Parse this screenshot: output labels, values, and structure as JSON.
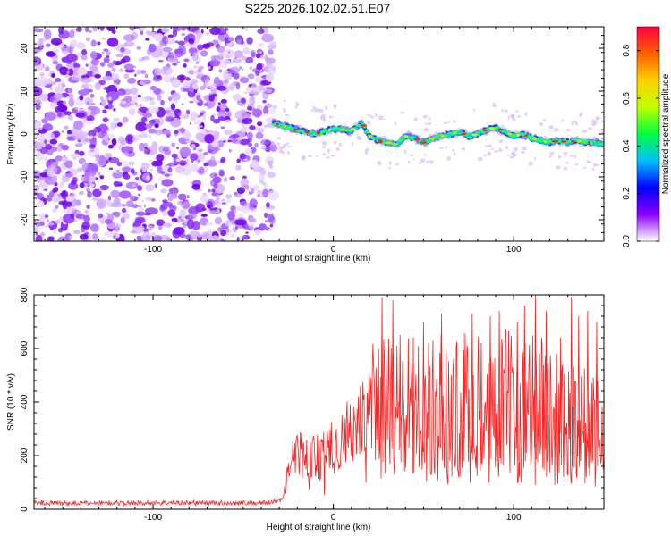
{
  "title": "S225.2026.102.02.51.E07",
  "chart_data": [
    {
      "type": "heatmap",
      "xlabel": "Height of straight line (km)",
      "ylabel": "Frequency (Hz)",
      "xlim": [
        -166,
        150
      ],
      "ylim": [
        -25,
        25
      ],
      "xticks": [
        -100,
        0,
        100
      ],
      "yticks": [
        -20,
        -10,
        0,
        10,
        20
      ],
      "xtick_labels": [
        "-100",
        "0",
        "100"
      ],
      "ytick_labels": [
        "-20",
        "-10",
        "0",
        "10",
        "20"
      ],
      "noise_region_x": [
        -166,
        -33
      ],
      "signal_track": {
        "x": [
          -33,
          -20,
          -10,
          0,
          10,
          16,
          20,
          25,
          30,
          35,
          40,
          45,
          50,
          55,
          60,
          65,
          70,
          75,
          80,
          85,
          90,
          95,
          100,
          105,
          110,
          115,
          120,
          125,
          130,
          135,
          140,
          145,
          150
        ],
        "freq_hz": [
          2.5,
          1.0,
          0.0,
          1.2,
          0.8,
          2.5,
          -0.5,
          -1.5,
          -2.0,
          -2.5,
          -0.5,
          -1.0,
          -2.0,
          -1.0,
          -0.5,
          0.0,
          0.5,
          -0.5,
          0.0,
          1.0,
          1.5,
          0.5,
          -0.5,
          0.0,
          -1.0,
          -1.5,
          -2.0,
          -1.5,
          -2.0,
          -1.5,
          -2.0,
          -2.0,
          -2.5
        ]
      },
      "colorbar": {
        "label": "Normalized spectral amplitude",
        "range": [
          0.0,
          0.9
        ],
        "ticks": [
          0.0,
          0.2,
          0.4,
          0.6,
          0.8
        ],
        "tick_labels": [
          "0.0",
          "0.2",
          "0.4",
          "0.6",
          "0.8"
        ],
        "colors": [
          "#ffffff",
          "#8a00ff",
          "#0000ff",
          "#00c0ff",
          "#00ff40",
          "#c0ff00",
          "#ffd000",
          "#ff6000",
          "#ff0040"
        ]
      }
    },
    {
      "type": "line",
      "xlabel": "Height of straight line (km)",
      "ylabel": "SNR (10 * v/v)",
      "xlim": [
        -166,
        150
      ],
      "ylim": [
        0,
        800
      ],
      "xticks": [
        -100,
        0,
        100
      ],
      "yticks": [
        0,
        200,
        400,
        600,
        800
      ],
      "xtick_labels": [
        "-100",
        "0",
        "100"
      ],
      "ytick_labels": [
        "0",
        "200",
        "400",
        "600",
        "800"
      ],
      "series": [
        {
          "name": "SNR",
          "color": "#ff2020",
          "x": [
            -166,
            -150,
            -130,
            -110,
            -90,
            -70,
            -50,
            -35,
            -28,
            -25,
            -20,
            -15,
            -10,
            -5,
            0,
            5,
            10,
            15,
            20,
            25,
            30,
            35,
            40,
            45,
            50,
            55,
            60,
            65,
            70,
            75,
            80,
            85,
            90,
            95,
            100,
            105,
            110,
            115,
            120,
            125,
            130,
            135,
            140,
            145,
            150
          ],
          "values": [
            25,
            22,
            24,
            23,
            25,
            24,
            23,
            25,
            40,
            150,
            210,
            200,
            190,
            210,
            230,
            260,
            300,
            330,
            350,
            360,
            380,
            370,
            360,
            380,
            360,
            370,
            380,
            360,
            370,
            380,
            390,
            380,
            400,
            390,
            380,
            370,
            390,
            380,
            360,
            350,
            340,
            330,
            320,
            330,
            340
          ],
          "spikes": {
            "x": [
              27,
              33,
              37,
              50,
              60,
              72,
              77,
              82,
              87,
              92,
              102,
              106,
              112,
              118,
              126,
              132,
              136,
              141,
              146
            ],
            "values": [
              790,
              780,
              650,
              700,
              730,
              660,
              730,
              620,
              720,
              740,
              700,
              760,
              800,
              740,
              640,
              790,
              720,
              740,
              700
            ]
          }
        }
      ]
    }
  ]
}
